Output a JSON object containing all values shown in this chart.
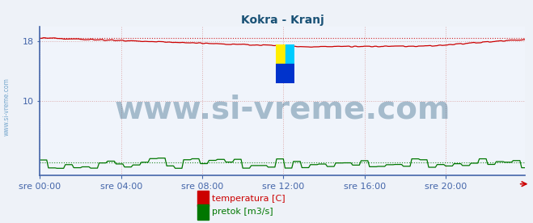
{
  "title": "Kokra - Kranj",
  "title_color": "#1a5276",
  "bg_color": "#eef2f8",
  "plot_bg_color": "#f0f4fb",
  "grid_color": "#ddaaaa",
  "grid_style": ":",
  "left_spine_color": "#4466aa",
  "bottom_spine_color": "#4466aa",
  "tick_label_color": "#4466aa",
  "temp_color": "#cc0000",
  "flow_color": "#007700",
  "temp_start": 18.5,
  "temp_min": 17.3,
  "temp_min_idx": 160,
  "temp_end": 18.3,
  "temp_rise_idx": 230,
  "temp_max_dotted": 18.5,
  "flow_base": 1.5,
  "flow_max_dotted": 1.7,
  "xlim": [
    0,
    287
  ],
  "ylim": [
    0,
    20
  ],
  "yticks": [
    10,
    18
  ],
  "xtick_pos": [
    0,
    48,
    96,
    144,
    192,
    240
  ],
  "xtick_labels": [
    "sre 00:00",
    "sre 04:00",
    "sre 08:00",
    "sre 12:00",
    "sre 16:00",
    "sre 20:00"
  ],
  "watermark_text": "www.si-vreme.com",
  "watermark_color": "#1a5276",
  "watermark_alpha": 0.35,
  "watermark_fontsize": 28,
  "left_text": "www.si-vreme.com",
  "left_text_color": "#4488bb",
  "legend_temp_label": "temperatura [C]",
  "legend_flow_label": "pretok [m3/s]",
  "n_points": 288,
  "logo_yellow": "#ffee00",
  "logo_blue": "#0033cc",
  "logo_cyan": "#00ccff"
}
